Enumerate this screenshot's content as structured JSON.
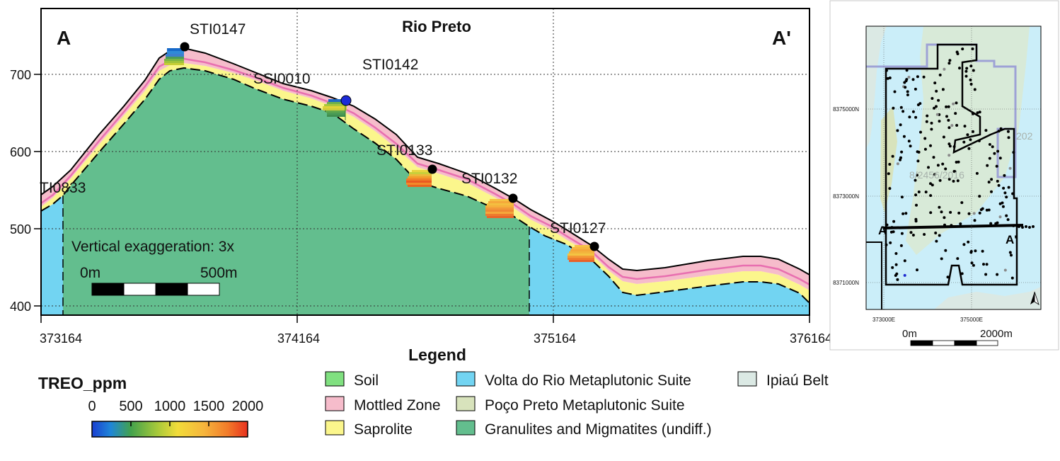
{
  "section": {
    "title": "Rio Preto",
    "start_label": "A",
    "end_label": "A'",
    "x_ticks": [
      "373164",
      "374164",
      "375164",
      "376164"
    ],
    "y_ticks": [
      "700",
      "600",
      "500",
      "400"
    ],
    "x_range": [
      373164,
      376164
    ],
    "y_range": [
      387,
      752
    ],
    "vertical_exaggeration": "Vertical exaggeration: 3x",
    "scale_start": "0m",
    "scale_end": "500m",
    "drillholes": [
      {
        "id": "STI0147",
        "x": 373653,
        "z": 735
      },
      {
        "id": "SSI0010",
        "x": 374361,
        "z": 695
      },
      {
        "id": "STI0142",
        "x": 374354,
        "z": 666
      },
      {
        "id": "STI0133",
        "x": 374690,
        "z": 577
      },
      {
        "id": "STI0132",
        "x": 374996,
        "z": 539
      },
      {
        "id": "STI0127",
        "x": 375321,
        "z": 477
      },
      {
        "id": "TI0833",
        "x": 373164,
        "z": 553
      }
    ],
    "geology_colors": {
      "soil": "#80e080",
      "mottled_zone": "#f6bccb",
      "saprolite": "#fbf68c",
      "volta_do_rio": "#72d4f2",
      "granulites": "#63be8e",
      "poco_preto": "#d8e3bc",
      "ipiau": "#dbe9e4"
    }
  },
  "legend": {
    "title": "Legend",
    "items": [
      {
        "label": "Soil",
        "color": "#80e080"
      },
      {
        "label": "Mottled Zone",
        "color": "#f6bccb"
      },
      {
        "label": "Saprolite",
        "color": "#fbf68c"
      },
      {
        "label": "Volta do Rio Metaplutonic Suite",
        "color": "#72d4f2"
      },
      {
        "label": "Poço Preto Metaplutonic Suite",
        "color": "#d8e3bc"
      },
      {
        "label": "Granulites and Migmatites (undiff.)",
        "color": "#63be8e"
      },
      {
        "label": "Ipiaú Belt",
        "color": "#dbe9e4"
      }
    ]
  },
  "colorbar": {
    "title": "TREO_ppm",
    "ticks": [
      "0",
      "500",
      "1000",
      "1500",
      "2000"
    ],
    "range": [
      0,
      2000
    ]
  },
  "inset_map": {
    "northings": [
      "8375000N",
      "8373000N",
      "8371000N"
    ],
    "eastings": [
      "373000E",
      "375000E"
    ],
    "label_a": "A",
    "label_a_prime": "A'",
    "faded_labels": [
      "202",
      "8/2456/2016"
    ],
    "scale_start": "0m",
    "scale_end": "2000m"
  }
}
